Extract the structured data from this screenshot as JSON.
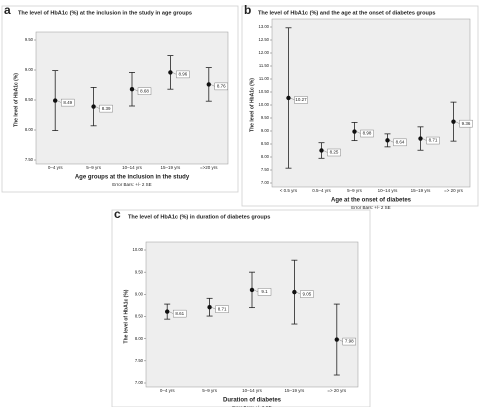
{
  "chart_data": [
    {
      "type": "errorbar",
      "panel": "a",
      "title": "The level of HbA1c (%) at the inclusion in the study in age groups",
      "xlabel": "Age groups at the inclusion in the study",
      "ylabel": "The level of HbA1c (%)",
      "note": "Error Bars: +/- 2 SE",
      "categories": [
        "0–4 yrs",
        "5–9 yrs",
        "10–14 yrs",
        "15–19 yrs",
        "=>20 yrs"
      ],
      "values": [
        8.49,
        8.39,
        8.68,
        8.96,
        8.76
      ],
      "errors": [
        0.5,
        0.32,
        0.28,
        0.28,
        0.28
      ],
      "ylim": [
        7.5,
        9.5
      ],
      "yticks": [
        {
          "value": 7.5,
          "label": "7.50"
        },
        {
          "value": 8,
          "label": "8.00"
        },
        {
          "value": 8.5,
          "label": "8.50"
        },
        {
          "value": 9,
          "label": "9.00"
        },
        {
          "value": 9.5,
          "label": "9.50"
        }
      ]
    },
    {
      "type": "errorbar",
      "panel": "b",
      "title": "The level of HbA1c (%) and the age at the onset of diabetes groups",
      "xlabel": "Age at the onset of diabetes",
      "ylabel": "The level of HbA1c (%)",
      "note": "Error Bars: +/- 2 SE",
      "categories": [
        "< 0.5 yrs",
        "0.5–4 yrs",
        "5–9 yrs",
        "10–14 yrs",
        "15–19 yrs",
        "=> 20 yrs"
      ],
      "values": [
        10.27,
        8.25,
        8.98,
        8.64,
        8.71,
        9.36
      ],
      "errors": [
        2.7,
        0.3,
        0.35,
        0.25,
        0.45,
        0.75
      ],
      "ylim": [
        7,
        13
      ],
      "yticks": [
        {
          "value": 7,
          "label": "7.00"
        },
        {
          "value": 7.5,
          "label": "7.50"
        },
        {
          "value": 8,
          "label": "8.00"
        },
        {
          "value": 8.5,
          "label": "8.50"
        },
        {
          "value": 9,
          "label": "9.00"
        },
        {
          "value": 9.5,
          "label": "9.50"
        },
        {
          "value": 10,
          "label": "10.00"
        },
        {
          "value": 10.5,
          "label": "10.50"
        },
        {
          "value": 11,
          "label": "11.00"
        },
        {
          "value": 11.5,
          "label": "11.50"
        },
        {
          "value": 12,
          "label": "12.00"
        },
        {
          "value": 12.5,
          "label": "12.50"
        },
        {
          "value": 13,
          "label": "13.00"
        }
      ]
    },
    {
      "type": "errorbar",
      "panel": "c",
      "title": "The level of HbA1c (%) in duration of diabetes groups",
      "xlabel": "Duration of diabetes",
      "ylabel": "The level of HbA1c (%)",
      "note": "Error Bars: +/- 2 SE",
      "categories": [
        "0–4 yrs",
        "5–9 yrs",
        "10–14 yrs",
        "15–19 yrs",
        "=> 20 yrs"
      ],
      "values": [
        8.61,
        8.71,
        9.1,
        9.05,
        7.98
      ],
      "errors": [
        0.17,
        0.2,
        0.4,
        0.72,
        0.8
      ],
      "ylim": [
        7,
        10
      ],
      "yticks": [
        {
          "value": 7,
          "label": "7.00"
        },
        {
          "value": 7.5,
          "label": "7.50"
        },
        {
          "value": 8,
          "label": "8.00"
        },
        {
          "value": 8.5,
          "label": "8.50"
        },
        {
          "value": 9,
          "label": "9.00"
        },
        {
          "value": 9.5,
          "label": "9.50"
        },
        {
          "value": 10,
          "label": "10.00"
        }
      ]
    }
  ]
}
